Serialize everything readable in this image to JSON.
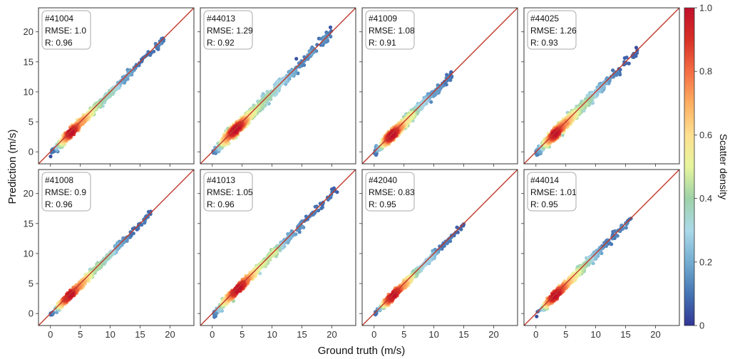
{
  "figure": {
    "xlabel": "Ground truth (m/s)",
    "ylabel": "Prediction (m/s)"
  },
  "colorbar": {
    "label": "Scatter density",
    "range": [
      0,
      1
    ],
    "ticks": [
      "0",
      "0.2",
      "0.4",
      "0.6",
      "0.8",
      "1.0"
    ],
    "colormap": [
      "#313695",
      "#4575b4",
      "#74add1",
      "#abd9e9",
      "#9ed2a8",
      "#e6f59d",
      "#fee090",
      "#fdae61",
      "#f46d43",
      "#d73027",
      "#c1102b"
    ]
  },
  "chart_data": [
    {
      "type": "scatter",
      "station": "#41004",
      "rmse_label": "RMSE: 1.0",
      "r_label": "R: 0.96",
      "rmse": 1.0,
      "r": 0.96,
      "xlim": [
        -2,
        24
      ],
      "ylim": [
        -2,
        24
      ],
      "ticks": [
        0,
        5,
        10,
        15,
        20
      ],
      "x_range": [
        0,
        19
      ],
      "seed": 11,
      "reference_line": "y = x"
    },
    {
      "type": "scatter",
      "station": "#44013",
      "rmse_label": "RMSE: 1.29",
      "r_label": "R: 0.92",
      "rmse": 1.29,
      "r": 0.92,
      "xlim": [
        -2,
        24
      ],
      "ylim": [
        -2,
        24
      ],
      "ticks": [
        0,
        5,
        10,
        15,
        20
      ],
      "x_range": [
        0,
        20
      ],
      "seed": 23,
      "reference_line": "y = x"
    },
    {
      "type": "scatter",
      "station": "#41009",
      "rmse_label": "RMSE: 1.08",
      "r_label": "R: 0.91",
      "rmse": 1.08,
      "r": 0.91,
      "xlim": [
        -2,
        24
      ],
      "ylim": [
        -2,
        24
      ],
      "ticks": [
        0,
        5,
        10,
        15,
        20
      ],
      "x_range": [
        0,
        13
      ],
      "seed": 37,
      "reference_line": "y = x"
    },
    {
      "type": "scatter",
      "station": "#44025",
      "rmse_label": "RMSE: 1.26",
      "r_label": "R: 0.93",
      "rmse": 1.26,
      "r": 0.93,
      "xlim": [
        -2,
        24
      ],
      "ylim": [
        -2,
        24
      ],
      "ticks": [
        0,
        5,
        10,
        15,
        20
      ],
      "x_range": [
        0,
        17
      ],
      "seed": 41,
      "reference_line": "y = x"
    },
    {
      "type": "scatter",
      "station": "#41008",
      "rmse_label": "RMSE: 0.9",
      "r_label": "R: 0.96",
      "rmse": 0.9,
      "r": 0.96,
      "xlim": [
        -2,
        24
      ],
      "ylim": [
        -2,
        24
      ],
      "ticks": [
        0,
        5,
        10,
        15,
        20
      ],
      "x_range": [
        0,
        17
      ],
      "seed": 53,
      "reference_line": "y = x"
    },
    {
      "type": "scatter",
      "station": "#41013",
      "rmse_label": "RMSE: 1.05",
      "r_label": "R: 0.96",
      "rmse": 1.05,
      "r": 0.96,
      "xlim": [
        -2,
        24
      ],
      "ylim": [
        -2,
        24
      ],
      "ticks": [
        0,
        5,
        10,
        15,
        20
      ],
      "x_range": [
        0,
        21
      ],
      "seed": 67,
      "reference_line": "y = x"
    },
    {
      "type": "scatter",
      "station": "#42040",
      "rmse_label": "RMSE: 0.83",
      "r_label": "R: 0.95",
      "rmse": 0.83,
      "r": 0.95,
      "xlim": [
        -2,
        24
      ],
      "ylim": [
        -2,
        24
      ],
      "ticks": [
        0,
        5,
        10,
        15,
        20
      ],
      "x_range": [
        0,
        15
      ],
      "seed": 79,
      "reference_line": "y = x"
    },
    {
      "type": "scatter",
      "station": "#44014",
      "rmse_label": "RMSE: 1.01",
      "r_label": "R: 0.95",
      "rmse": 1.01,
      "r": 0.95,
      "xlim": [
        -2,
        24
      ],
      "ylim": [
        -2,
        24
      ],
      "ticks": [
        0,
        5,
        10,
        15,
        20
      ],
      "x_range": [
        0,
        16
      ],
      "seed": 97,
      "reference_line": "y = x"
    }
  ]
}
